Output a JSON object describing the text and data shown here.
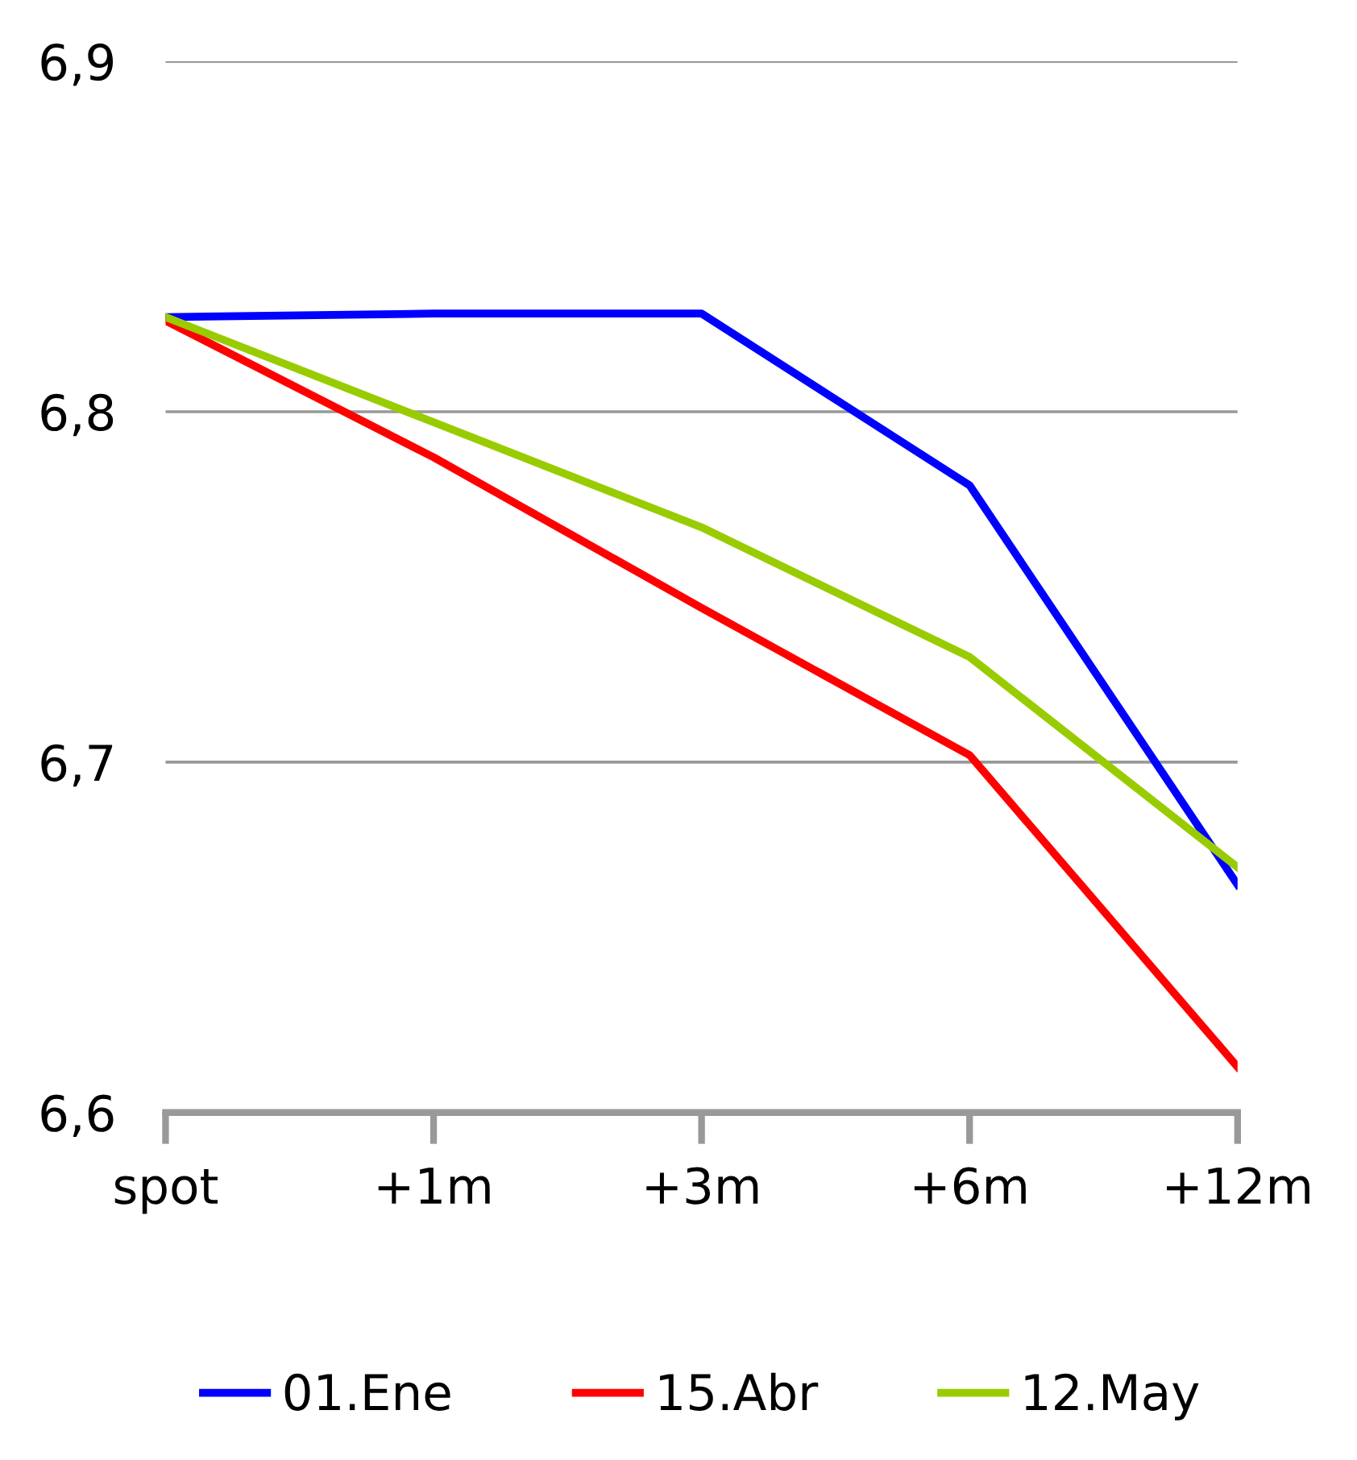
{
  "chart_data": {
    "type": "line",
    "categories": [
      "spot",
      "+1m",
      "+3m",
      "+6m",
      "+12m"
    ],
    "series": [
      {
        "name": "01.Ene",
        "color": "#0000ff",
        "values": [
          6.827,
          6.828,
          6.828,
          6.779,
          6.665
        ]
      },
      {
        "name": "15.Abr",
        "color": "#ff0000",
        "values": [
          6.826,
          6.787,
          6.744,
          6.702,
          6.613
        ]
      },
      {
        "name": "12.May",
        "color": "#99cc00",
        "values": [
          6.827,
          6.797,
          6.767,
          6.73,
          6.67
        ]
      }
    ],
    "ylim": [
      6.6,
      6.9
    ],
    "yticks": [
      {
        "value": 6.6,
        "label": "6,6"
      },
      {
        "value": 6.7,
        "label": "6,7"
      },
      {
        "value": 6.8,
        "label": "6,8"
      },
      {
        "value": 6.9,
        "label": "6,9"
      }
    ],
    "grid": "y",
    "legend": "bottom",
    "marker": "none",
    "line_style": "solid"
  }
}
